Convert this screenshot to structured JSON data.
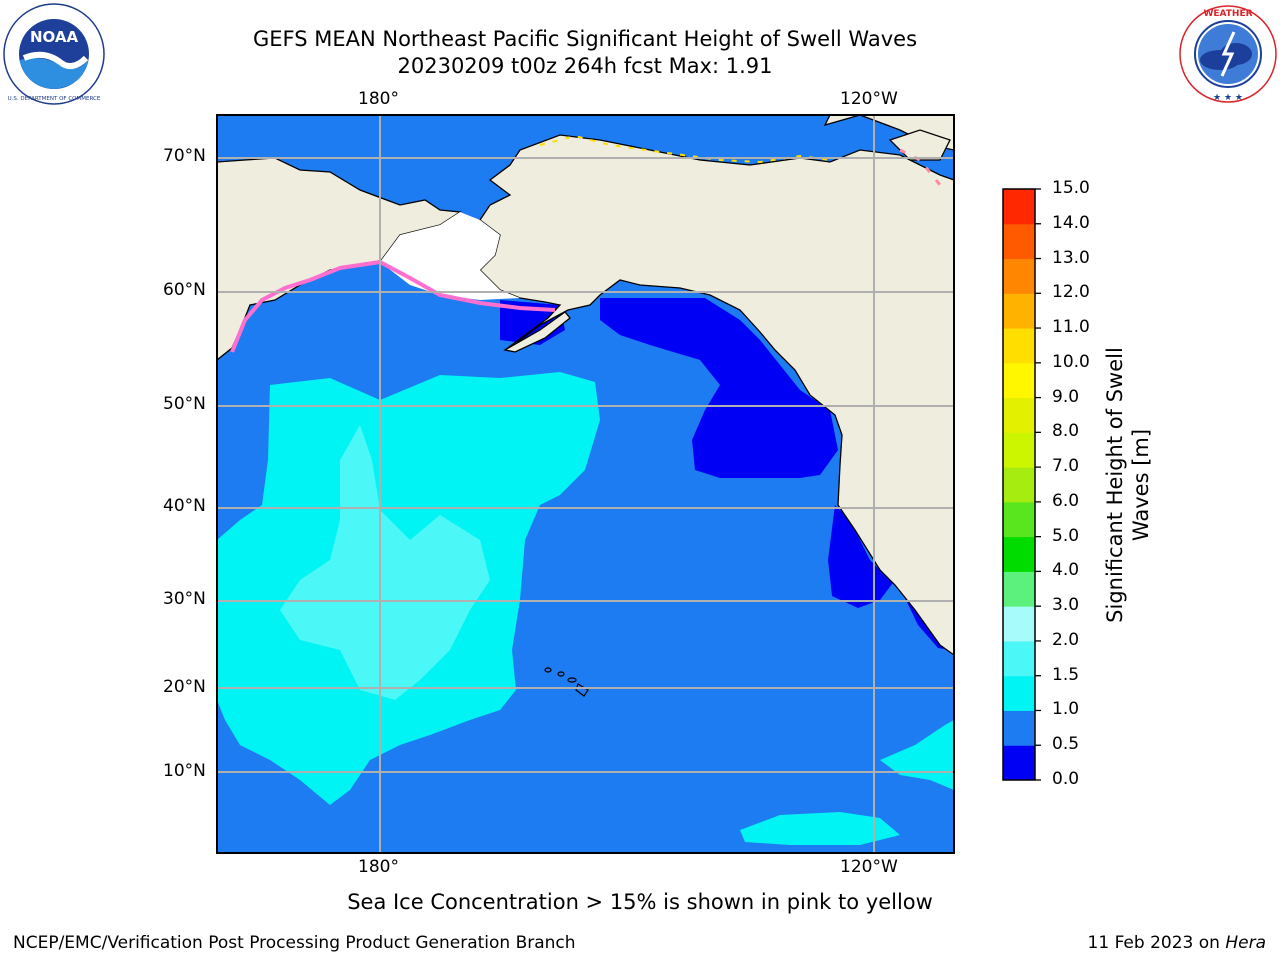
{
  "title": {
    "line1": "GEFS MEAN Northeast Pacific Significant Height of Swell Waves",
    "line2": "20230209 t00z 264h fcst   Max: 1.91"
  },
  "logos": {
    "left": {
      "icon": "noaa-logo-icon",
      "ring_text": "NATIONAL OCEANIC AND ATMOSPHERIC ADMINISTRATION",
      "bottom_text": "U.S. DEPARTMENT OF COMMERCE",
      "center_text": "NOAA"
    },
    "right": {
      "icon": "nws-logo-icon",
      "ring_text": "NATIONAL WEATHER SERVICE"
    }
  },
  "map": {
    "lat_labels": [
      "70°N",
      "60°N",
      "50°N",
      "40°N",
      "30°N",
      "20°N",
      "10°N"
    ],
    "lon_labels_top": [
      "180°",
      "120°W"
    ],
    "lon_labels_bottom": [
      "180°",
      "120°W"
    ],
    "land_color": "#efedde",
    "gridline_color": "#b0b0b0"
  },
  "colorbar": {
    "title": "Significant Height of Swell Waves [m]",
    "tick_labels": [
      "0.0",
      "0.5",
      "1.0",
      "1.5",
      "2.0",
      "3.0",
      "4.0",
      "5.0",
      "6.0",
      "7.0",
      "8.0",
      "9.0",
      "10.0",
      "11.0",
      "12.0",
      "13.0",
      "14.0",
      "15.0"
    ],
    "colors": [
      "#0000f5",
      "#1e7cf2",
      "#00f4f4",
      "#4cf7f7",
      "#a8fbfb",
      "#5cf07c",
      "#00dc00",
      "#5ae61e",
      "#a6ec10",
      "#ccf500",
      "#e3f000",
      "#fff700",
      "#ffde00",
      "#ffb200",
      "#ff8600",
      "#ff5a00",
      "#ff2800"
    ]
  },
  "note": "Sea Ice Concentration > 15% is shown in pink to yellow",
  "footer": {
    "left": "NCEP/EMC/Verification Post Processing Product Generation Branch",
    "right_prefix": "11 Feb 2023 on ",
    "right_host": "Hera"
  }
}
